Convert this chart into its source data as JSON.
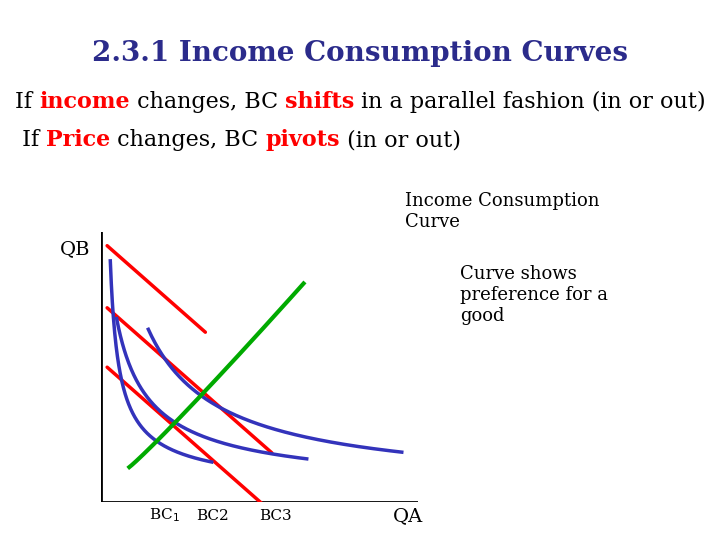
{
  "title": "2.3.1 Income Consumption Curves",
  "title_color": "#2B2B8B",
  "title_fontsize": 20,
  "background_color": "#ffffff",
  "line1_text_parts": [
    {
      "text": "If ",
      "color": "black",
      "bold": false
    },
    {
      "text": "income",
      "color": "red",
      "bold": true
    },
    {
      "text": " changes, BC ",
      "color": "black",
      "bold": false
    },
    {
      "text": "shifts",
      "color": "red",
      "bold": true
    },
    {
      "text": " in a parallel fashion (in or out)",
      "color": "black",
      "bold": false
    }
  ],
  "line2_text_parts": [
    {
      "text": " If ",
      "color": "black",
      "bold": false
    },
    {
      "text": "Price",
      "color": "red",
      "bold": true
    },
    {
      "text": " changes, BC ",
      "color": "black",
      "bold": false
    },
    {
      "text": "pivots",
      "color": "red",
      "bold": true
    },
    {
      "text": " (in or out)",
      "color": "black",
      "bold": false
    }
  ],
  "bc_color": "red",
  "ic_curve_color": "#3333BB",
  "icc_color": "#00AA00",
  "label_QB": "QB",
  "label_QA": "QA",
  "annotation_icc": "Income Consumption\nCurve",
  "annotation_shows": "Curve shows\npreference for a\ngood",
  "text_fontsize": 16,
  "graph_label_fontsize": 14
}
